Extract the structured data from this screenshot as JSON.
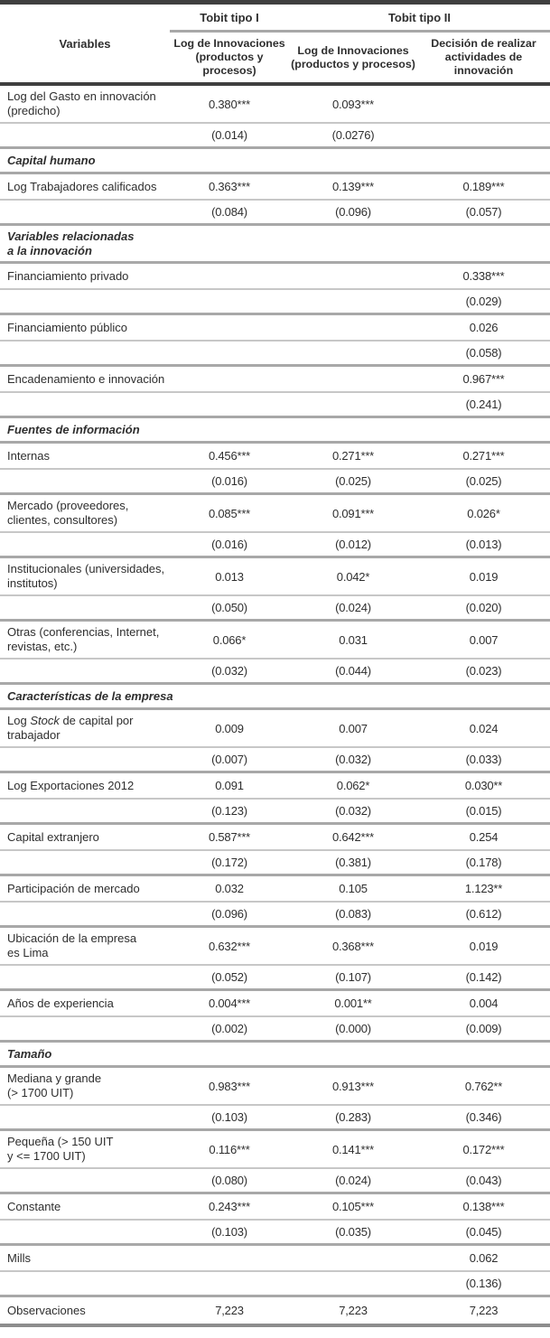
{
  "colors": {
    "rule_dark": "#3f3f3f",
    "rule_gray": "#a8a8a8",
    "rule_light": "#c7c7c7",
    "rule_bottom": "#8d8d8d",
    "text": "#2e2e2e"
  },
  "table": {
    "header": {
      "variables_label": "Variables",
      "groups": [
        {
          "label": "Tobit tipo I",
          "span": 1
        },
        {
          "label": "Tobit tipo II",
          "span": 2
        }
      ],
      "columns": [
        "Log de Innovaciones\n(productos y procesos)",
        "Log de Innovaciones\n(productos y procesos)",
        "Decisión de realizar\nactividades de\ninnovación"
      ]
    },
    "rows": [
      {
        "type": "coef",
        "label": "Log del Gasto en innovación\n(predicho)",
        "values": [
          "0.380***",
          "0.093***",
          ""
        ]
      },
      {
        "type": "se",
        "label": "",
        "values": [
          "(0.014)",
          "(0.0276)",
          ""
        ]
      },
      {
        "type": "section",
        "label": "Capital humano"
      },
      {
        "type": "coef",
        "label": "Log Trabajadores calificados",
        "values": [
          "0.363***",
          "0.139***",
          "0.189***"
        ]
      },
      {
        "type": "se",
        "label": "",
        "values": [
          "(0.084)",
          "(0.096)",
          "(0.057)"
        ]
      },
      {
        "type": "section",
        "label": "Variables relacionadas\na la innovación"
      },
      {
        "type": "coef",
        "label": "Financiamiento privado",
        "values": [
          "",
          "",
          "0.338***"
        ]
      },
      {
        "type": "se",
        "label": "",
        "values": [
          "",
          "",
          "(0.029)"
        ]
      },
      {
        "type": "coef",
        "label": "Financiamiento público",
        "values": [
          "",
          "",
          "0.026"
        ]
      },
      {
        "type": "se",
        "label": "",
        "values": [
          "",
          "",
          "(0.058)"
        ]
      },
      {
        "type": "coef",
        "label": "Encadenamiento e innovación",
        "values": [
          "",
          "",
          "0.967***"
        ]
      },
      {
        "type": "se",
        "label": "",
        "values": [
          "",
          "",
          "(0.241)"
        ]
      },
      {
        "type": "section",
        "label": "Fuentes de información"
      },
      {
        "type": "coef",
        "label": "Internas",
        "values": [
          "0.456***",
          "0.271***",
          "0.271***"
        ]
      },
      {
        "type": "se",
        "label": "",
        "values": [
          "(0.016)",
          "(0.025)",
          "(0.025)"
        ]
      },
      {
        "type": "coef",
        "label": "Mercado (proveedores,\nclientes, consultores)",
        "values": [
          "0.085***",
          "0.091***",
          "0.026*"
        ]
      },
      {
        "type": "se",
        "label": "",
        "values": [
          "(0.016)",
          "(0.012)",
          "(0.013)"
        ]
      },
      {
        "type": "coef",
        "label": "Institucionales (universidades,\ninstitutos)",
        "values": [
          "0.013",
          "0.042*",
          "0.019"
        ]
      },
      {
        "type": "se",
        "label": "",
        "values": [
          "(0.050)",
          "(0.024)",
          "(0.020)"
        ]
      },
      {
        "type": "coef",
        "label": "Otras (conferencias, Internet,\nrevistas, etc.)",
        "values": [
          "0.066*",
          "0.031",
          "0.007"
        ]
      },
      {
        "type": "se",
        "label": "",
        "values": [
          "(0.032)",
          "(0.044)",
          "(0.023)"
        ]
      },
      {
        "type": "section",
        "label": "Características de la empresa"
      },
      {
        "type": "coef",
        "parts": [
          {
            "text": "Log "
          },
          {
            "text": "Stock",
            "italic": true
          },
          {
            "text": " de capital por\ntrabajador"
          }
        ],
        "values": [
          "0.009",
          "0.007",
          "0.024"
        ]
      },
      {
        "type": "se",
        "label": "",
        "values": [
          "(0.007)",
          "(0.032)",
          "(0.033)"
        ]
      },
      {
        "type": "coef",
        "label": "Log Exportaciones 2012",
        "values": [
          "0.091",
          "0.062*",
          "0.030**"
        ]
      },
      {
        "type": "se",
        "label": "",
        "values": [
          "(0.123)",
          "(0.032)",
          "(0.015)"
        ]
      },
      {
        "type": "coef",
        "label": "Capital extranjero",
        "values": [
          "0.587***",
          "0.642***",
          "0.254"
        ]
      },
      {
        "type": "se",
        "label": "",
        "values": [
          "(0.172)",
          "(0.381)",
          "(0.178)"
        ]
      },
      {
        "type": "coef",
        "label": "Participación de mercado",
        "values": [
          "0.032",
          "0.105",
          "1.123**"
        ]
      },
      {
        "type": "se",
        "label": "",
        "values": [
          "(0.096)",
          "(0.083)",
          "(0.612)"
        ]
      },
      {
        "type": "coef",
        "label": "Ubicación de la empresa\nes Lima",
        "values": [
          "0.632***",
          "0.368***",
          "0.019"
        ]
      },
      {
        "type": "se",
        "label": "",
        "values": [
          "(0.052)",
          "(0.107)",
          "(0.142)"
        ]
      },
      {
        "type": "coef",
        "label": "Años de experiencia",
        "values": [
          "0.004***",
          "0.001**",
          "0.004"
        ]
      },
      {
        "type": "se",
        "label": "",
        "values": [
          "(0.002)",
          "(0.000)",
          "(0.009)"
        ]
      },
      {
        "type": "section",
        "label": "Tamaño"
      },
      {
        "type": "coef",
        "label": "Mediana y grande\n(> 1700 UIT)",
        "values": [
          "0.983***",
          "0.913***",
          "0.762**"
        ]
      },
      {
        "type": "se",
        "label": "",
        "values": [
          "(0.103)",
          "(0.283)",
          "(0.346)"
        ]
      },
      {
        "type": "coef",
        "label": "Pequeña (> 150 UIT\ny <= 1700 UIT)",
        "values": [
          "0.116***",
          "0.141***",
          "0.172***"
        ]
      },
      {
        "type": "se",
        "label": "",
        "values": [
          "(0.080)",
          "(0.024)",
          "(0.043)"
        ]
      },
      {
        "type": "coef",
        "label": "Constante",
        "values": [
          "0.243***",
          "0.105***",
          "0.138***"
        ]
      },
      {
        "type": "se",
        "label": "",
        "values": [
          "(0.103)",
          "(0.035)",
          "(0.045)"
        ]
      },
      {
        "type": "coef",
        "label": "Mills",
        "values": [
          "",
          "",
          "0.062"
        ]
      },
      {
        "type": "se",
        "label": "",
        "values": [
          "",
          "",
          "(0.136)"
        ]
      },
      {
        "type": "coef",
        "label": "Observaciones",
        "values": [
          "7,223",
          "7,223",
          "7,223"
        ]
      }
    ]
  }
}
